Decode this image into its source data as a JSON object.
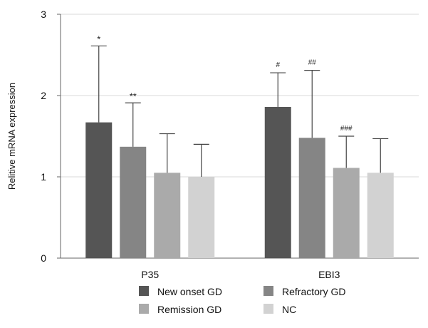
{
  "chart_data": {
    "type": "bar",
    "categories": [
      "P35",
      "EBI3"
    ],
    "ylabel": "Relitive mRNA expression",
    "xlabel": "",
    "title": "",
    "ylim": [
      0,
      3
    ],
    "yticks": [
      0,
      1,
      2,
      3
    ],
    "grid": true,
    "legend_position": "bottom",
    "series": [
      {
        "name": "New onset GD",
        "color": "#555555",
        "values": [
          1.67,
          1.86
        ],
        "errors": [
          0.94,
          0.42
        ],
        "annotations": [
          "*",
          "#"
        ]
      },
      {
        "name": "Refractory GD",
        "color": "#858585",
        "values": [
          1.37,
          1.48
        ],
        "errors": [
          0.54,
          0.83
        ],
        "annotations": [
          "**",
          "##"
        ]
      },
      {
        "name": "Remission GD",
        "color": "#aaaaaa",
        "values": [
          1.05,
          1.11
        ],
        "errors": [
          0.48,
          0.39
        ],
        "annotations": [
          "",
          "###"
        ]
      },
      {
        "name": "NC",
        "color": "#d2d2d2",
        "values": [
          1.0,
          1.05
        ],
        "errors": [
          0.4,
          0.42
        ],
        "annotations": [
          "",
          ""
        ]
      }
    ]
  }
}
